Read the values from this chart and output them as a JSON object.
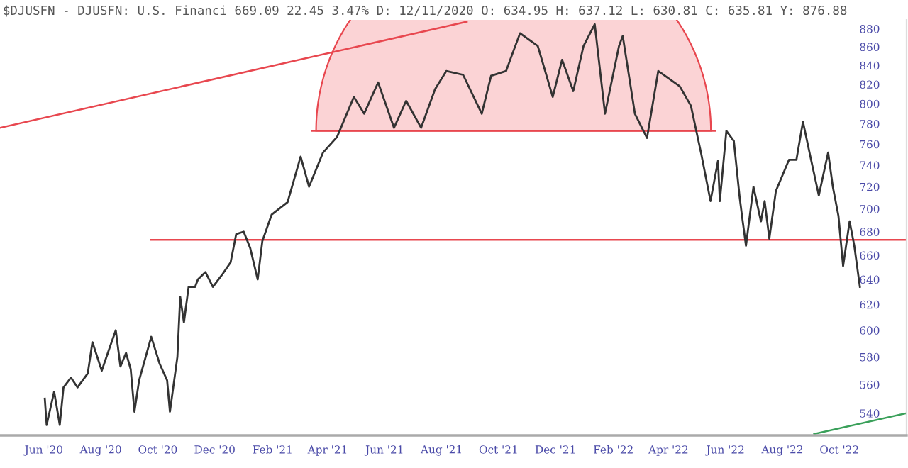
{
  "chart_data": {
    "type": "line",
    "title": "$DJUSFN - DJUSFN: U.S. Financi 669.09 22.45 3.47% D: 12/11/2020 O: 634.95 H: 637.12 L: 630.81 C: 635.81 Y: 876.88",
    "log": true,
    "marker": "none",
    "line_style": "solid",
    "grid": false,
    "xlim": [
      "2020-04-15",
      "2022-12-12"
    ],
    "ylim": [
      525,
      890
    ],
    "xticks": [
      {
        "value": "2020-06-01",
        "label": "Jun '20"
      },
      {
        "value": "2020-08-01",
        "label": "Aug '20"
      },
      {
        "value": "2020-10-01",
        "label": "Oct '20"
      },
      {
        "value": "2020-12-01",
        "label": "Dec '20"
      },
      {
        "value": "2021-02-01",
        "label": "Feb '21"
      },
      {
        "value": "2021-04-01",
        "label": "Apr '21"
      },
      {
        "value": "2021-06-01",
        "label": "Jun '21"
      },
      {
        "value": "2021-08-01",
        "label": "Aug '21"
      },
      {
        "value": "2021-10-01",
        "label": "Oct '21"
      },
      {
        "value": "2021-12-01",
        "label": "Dec '21"
      },
      {
        "value": "2022-02-01",
        "label": "Feb '22"
      },
      {
        "value": "2022-04-01",
        "label": "Apr '22"
      },
      {
        "value": "2022-06-01",
        "label": "Jun '22"
      },
      {
        "value": "2022-08-01",
        "label": "Aug '22"
      },
      {
        "value": "2022-10-01",
        "label": "Oct '22"
      }
    ],
    "yticks": [
      540,
      560,
      580,
      600,
      620,
      640,
      660,
      680,
      700,
      720,
      740,
      760,
      780,
      800,
      820,
      840,
      860,
      880
    ],
    "series": [
      {
        "color": "#333333",
        "x": [
          "2020-06-02",
          "2020-06-04",
          "2020-06-12",
          "2020-06-18",
          "2020-06-22",
          "2020-06-30",
          "2020-07-07",
          "2020-07-18",
          "2020-07-23",
          "2020-08-02",
          "2020-08-10",
          "2020-08-17",
          "2020-08-22",
          "2020-08-28",
          "2020-09-02",
          "2020-09-06",
          "2020-09-11",
          "2020-09-24",
          "2020-10-03",
          "2020-10-11",
          "2020-10-14",
          "2020-10-22",
          "2020-10-25",
          "2020-10-29",
          "2020-11-03",
          "2020-11-10",
          "2020-11-13",
          "2020-11-21",
          "2020-11-29",
          "2020-12-09",
          "2020-12-18",
          "2020-12-24",
          "2021-01-01",
          "2021-01-08",
          "2021-01-16",
          "2021-01-21",
          "2021-01-31",
          "2021-02-17",
          "2021-03-03",
          "2021-03-12",
          "2021-03-27",
          "2021-04-11",
          "2021-04-29",
          "2021-05-10",
          "2021-05-25",
          "2021-06-11",
          "2021-06-24",
          "2021-07-10",
          "2021-07-25",
          "2021-08-06",
          "2021-08-24",
          "2021-09-13",
          "2021-09-23",
          "2021-10-09",
          "2021-10-16",
          "2021-10-24",
          "2021-11-12",
          "2021-11-28",
          "2021-12-08",
          "2021-12-20",
          "2021-12-31",
          "2022-01-12",
          "2022-01-23",
          "2022-02-07",
          "2022-02-11",
          "2022-02-24",
          "2022-03-09",
          "2022-03-21",
          "2022-04-13",
          "2022-04-25",
          "2022-05-06",
          "2022-05-16",
          "2022-05-24",
          "2022-05-26",
          "2022-06-02",
          "2022-06-10",
          "2022-06-16",
          "2022-06-19",
          "2022-06-23",
          "2022-07-01",
          "2022-07-09",
          "2022-07-13",
          "2022-07-18",
          "2022-07-25",
          "2022-08-08",
          "2022-08-16",
          "2022-08-23",
          "2022-08-31",
          "2022-09-09",
          "2022-09-19",
          "2022-09-24",
          "2022-09-30",
          "2022-10-05",
          "2022-10-12",
          "2022-10-17",
          "2022-10-23"
        ],
        "values": [
          550,
          532,
          555,
          532,
          558,
          565,
          558,
          568,
          591,
          570,
          586,
          600,
          573,
          583,
          571,
          541,
          563,
          595,
          575,
          563,
          541,
          580,
          626,
          606,
          634,
          634,
          640,
          646,
          634,
          644,
          654,
          678,
          680,
          666,
          640,
          672,
          695,
          706,
          748,
          720,
          752,
          767,
          807,
          790,
          822,
          776,
          803,
          776,
          815,
          834,
          830,
          790,
          829,
          834,
          853,
          875,
          861,
          807,
          846,
          813,
          861,
          885,
          790,
          861,
          872,
          790,
          766,
          834,
          818,
          798,
          751,
          707,
          744,
          707,
          773,
          763,
          712,
          692,
          668,
          720,
          689,
          707,
          674,
          716,
          745,
          745,
          782,
          748,
          712,
          752,
          720,
          694,
          651,
          689,
          668,
          634
        ]
      },
      {
        "color": "#e8474f",
        "x": [
          "2020-04-15",
          "2021-08-28"
        ],
        "values": [
          776,
          888
        ]
      },
      {
        "color": "#e8474f",
        "x": [
          "2020-09-24",
          "2022-12-12"
        ],
        "values": [
          673,
          673
        ]
      },
      {
        "color": "#3aa05a",
        "x": [
          "2022-09-04",
          "2022-12-12"
        ],
        "values": [
          526,
          540
        ]
      },
      {
        "color": "#e8474f",
        "x": [
          "2021-03-15",
          "2022-05-21"
        ],
        "values": [
          773,
          773
        ]
      }
    ]
  }
}
